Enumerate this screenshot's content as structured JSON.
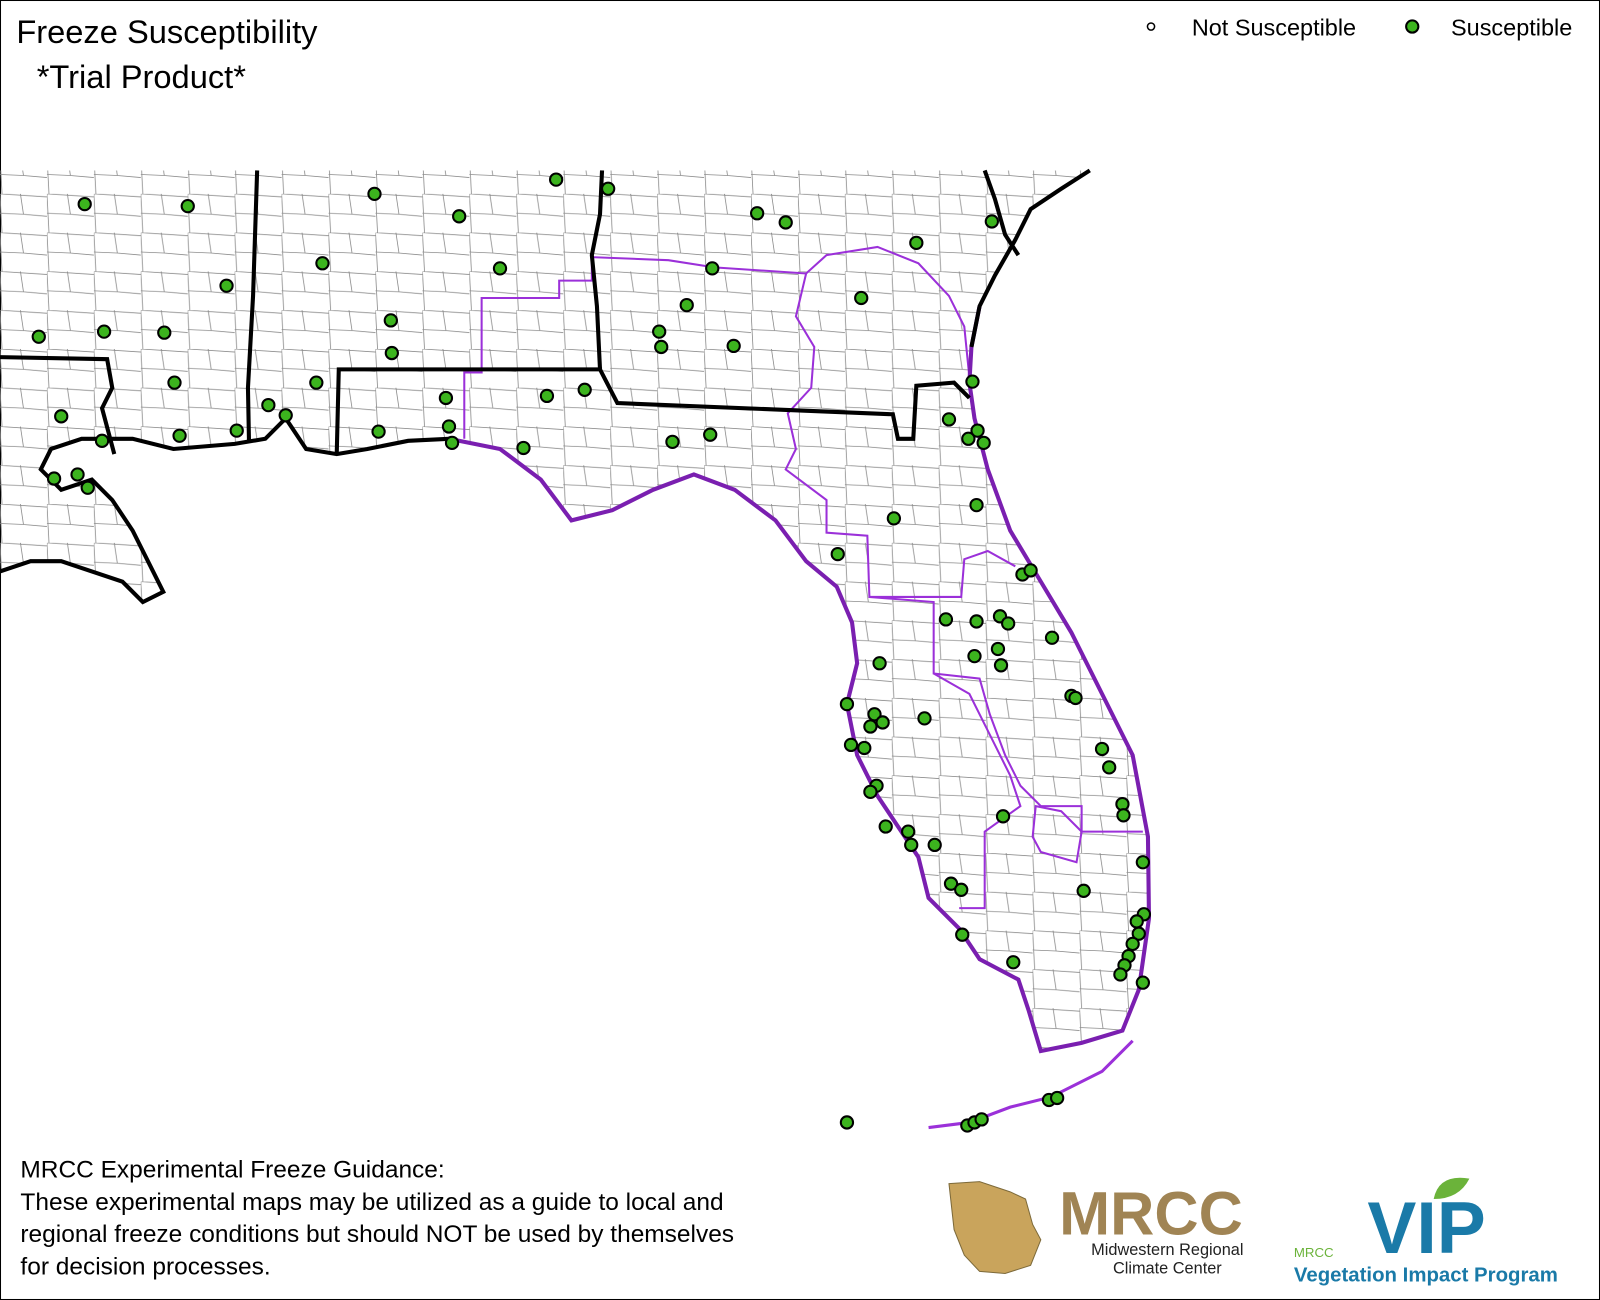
{
  "header": {
    "title": "Freeze Susceptibility",
    "subtitle": "*Trial Product*"
  },
  "legend": {
    "items": [
      "Not Susceptible",
      "Susceptible"
    ]
  },
  "footer": {
    "heading": "MRCC Experimental Freeze Guidance:",
    "lines": [
      "These experimental maps may be utilized as a guide to local and",
      "regional freeze conditions but should NOT be used by themselves",
      "for decision processes."
    ]
  },
  "logos": {
    "mrcc": {
      "name": "MRCC",
      "line1": "Midwestern Regional",
      "line2": "Climate Center"
    },
    "vip": {
      "small": "MRCC",
      "name": "VIP",
      "program": "Vegetation Impact Program"
    }
  }
}
